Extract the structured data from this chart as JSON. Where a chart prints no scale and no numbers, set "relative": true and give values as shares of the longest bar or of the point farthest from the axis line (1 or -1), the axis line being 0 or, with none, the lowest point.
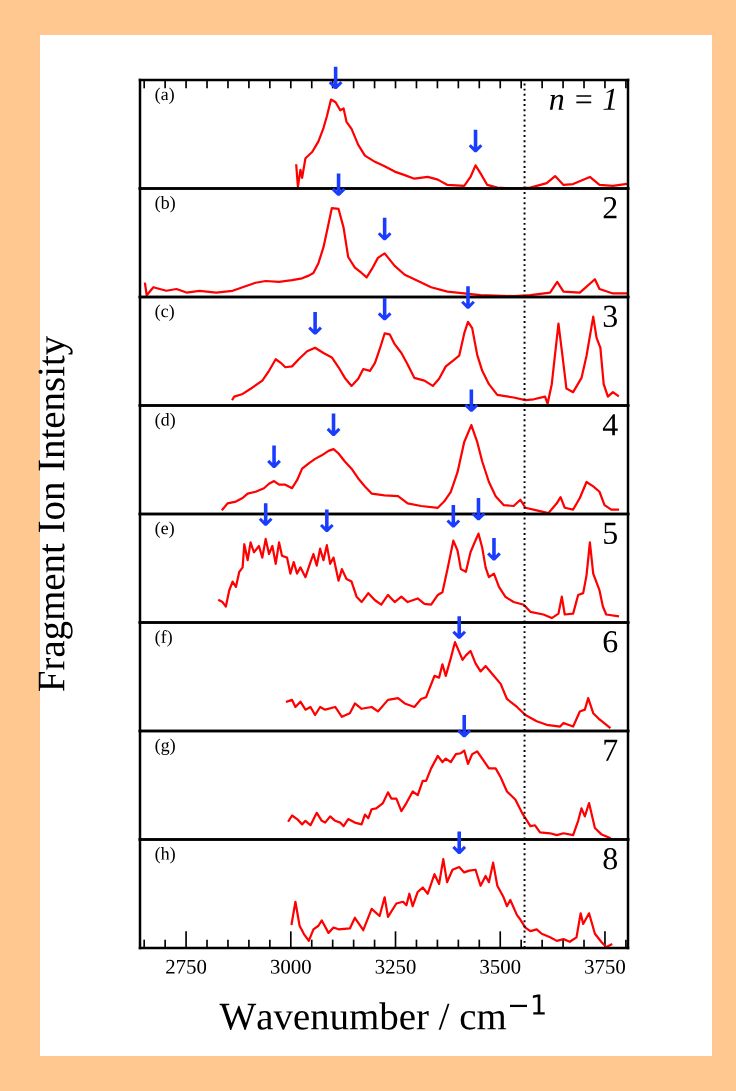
{
  "chart_data": [
    {
      "type": "line",
      "relative": true,
      "ylabel": "Fragment Ion Intensity",
      "xlim": [
        2640,
        3805
      ],
      "tick_labels": false,
      "legend": false,
      "grid": false,
      "xticks": [
        {
          "value": 2650,
          "label": null
        },
        {
          "value": 2700,
          "label": null
        },
        {
          "value": 2750,
          "label": null
        },
        {
          "value": 2800,
          "label": null
        },
        {
          "value": 2850,
          "label": null
        },
        {
          "value": 2900,
          "label": null
        },
        {
          "value": 2950,
          "label": null
        },
        {
          "value": 3000,
          "label": null
        },
        {
          "value": 3050,
          "label": null
        },
        {
          "value": 3100,
          "label": null
        },
        {
          "value": 3150,
          "label": null
        },
        {
          "value": 3200,
          "label": null
        },
        {
          "value": 3250,
          "label": null
        },
        {
          "value": 3300,
          "label": null
        },
        {
          "value": 3350,
          "label": null
        },
        {
          "value": 3400,
          "label": null
        },
        {
          "value": 3450,
          "label": null
        },
        {
          "value": 3500,
          "label": null
        },
        {
          "value": 3550,
          "label": null
        },
        {
          "value": 3600,
          "label": null
        },
        {
          "value": 3650,
          "label": null
        },
        {
          "value": 3700,
          "label": null
        },
        {
          "value": 3750,
          "label": null
        },
        {
          "value": 3800,
          "label": null
        }
      ],
      "ref_lines": [
        {
          "axis": "x",
          "value": 3558,
          "color": "#000000",
          "line_style": "dotted"
        }
      ],
      "annotations": [
        "(a)",
        "n = 1",
        {
          "text": "↓",
          "x": 3107,
          "y": 0.97
        },
        {
          "text": "↓",
          "x": 3441,
          "y": 0.26
        }
      ],
      "series": [
        {
          "color": "#ff0000",
          "x": [
            3013,
            3017,
            3023,
            3027,
            3035,
            3051,
            3066,
            3078,
            3086,
            3096,
            3107,
            3118,
            3126,
            3133,
            3145,
            3161,
            3177,
            3201,
            3224,
            3248,
            3272,
            3295,
            3327,
            3351,
            3374,
            3414,
            3429,
            3441,
            3453,
            3469,
            3493,
            3532,
            3572,
            3611,
            3631,
            3651,
            3674,
            3714,
            3737,
            3769,
            3800
          ],
          "values": [
            0.26,
            0.02,
            0.21,
            0.12,
            0.34,
            0.41,
            0.53,
            0.68,
            0.81,
            1.0,
            0.97,
            0.88,
            0.9,
            0.75,
            0.67,
            0.49,
            0.37,
            0.3,
            0.25,
            0.19,
            0.15,
            0.11,
            0.13,
            0.1,
            0.04,
            0.03,
            0.13,
            0.26,
            0.17,
            0.04,
            0.01,
            0.0,
            0.01,
            0.06,
            0.14,
            0.04,
            0.05,
            0.13,
            0.04,
            0.03,
            0.05
          ]
        }
      ]
    },
    {
      "type": "line",
      "relative": true,
      "xlim": [
        2640,
        3805
      ],
      "tick_labels": false,
      "legend": false,
      "grid": false,
      "ref_lines": [
        {
          "axis": "x",
          "value": 3558,
          "color": "#000000",
          "line_style": "dotted"
        }
      ],
      "annotations": [
        "(b)",
        "2",
        {
          "text": "↓",
          "x": 3114,
          "y": 0.99
        },
        {
          "text": "↓",
          "x": 3224,
          "y": 0.49
        }
      ],
      "series": [
        {
          "color": "#ff0000",
          "x": [
            2652,
            2656,
            2672,
            2687,
            2703,
            2727,
            2751,
            2782,
            2822,
            2861,
            2885,
            2916,
            2940,
            2972,
            3003,
            3027,
            3043,
            3054,
            3066,
            3078,
            3090,
            3098,
            3114,
            3126,
            3137,
            3153,
            3169,
            3181,
            3193,
            3208,
            3224,
            3236,
            3248,
            3272,
            3295,
            3335,
            3374,
            3414,
            3453,
            3532,
            3572,
            3619,
            3636,
            3651,
            3690,
            3726,
            3737,
            3769,
            3800
          ],
          "values": [
            0.15,
            0.02,
            0.11,
            0.09,
            0.07,
            0.09,
            0.05,
            0.07,
            0.05,
            0.07,
            0.11,
            0.16,
            0.18,
            0.17,
            0.19,
            0.21,
            0.24,
            0.27,
            0.38,
            0.56,
            0.82,
            1.0,
            0.99,
            0.78,
            0.45,
            0.33,
            0.27,
            0.22,
            0.31,
            0.44,
            0.49,
            0.42,
            0.35,
            0.25,
            0.2,
            0.11,
            0.06,
            0.04,
            0.02,
            0.01,
            0.02,
            0.05,
            0.17,
            0.06,
            0.05,
            0.2,
            0.09,
            0.04,
            0.04
          ]
        }
      ]
    },
    {
      "type": "line",
      "relative": true,
      "xlim": [
        2640,
        3805
      ],
      "tick_labels": false,
      "legend": false,
      "grid": false,
      "ref_lines": [
        {
          "axis": "x",
          "value": 3558,
          "color": "#000000",
          "line_style": "dotted"
        }
      ],
      "annotations": [
        "(c)",
        "3",
        {
          "text": "↓",
          "x": 3058,
          "y": 0.65
        },
        {
          "text": "↓",
          "x": 3224,
          "y": 0.81
        },
        {
          "text": "↓",
          "x": 3423,
          "y": 0.94
        }
      ],
      "series": [
        {
          "color": "#ff0000",
          "x": [
            2861,
            2865,
            2885,
            2908,
            2932,
            2948,
            2964,
            2976,
            2987,
            3003,
            3019,
            3039,
            3058,
            3078,
            3098,
            3114,
            3129,
            3145,
            3161,
            3173,
            3189,
            3201,
            3212,
            3224,
            3236,
            3248,
            3264,
            3279,
            3295,
            3319,
            3339,
            3354,
            3370,
            3386,
            3402,
            3414,
            3423,
            3433,
            3445,
            3457,
            3473,
            3493,
            3532,
            3560,
            3580,
            3607,
            3613,
            3623,
            3639,
            3649,
            3658,
            3674,
            3694,
            3706,
            3722,
            3730,
            3739,
            3747,
            3757,
            3769,
            3781
          ],
          "values": [
            0.07,
            0.1,
            0.13,
            0.2,
            0.28,
            0.39,
            0.52,
            0.48,
            0.43,
            0.44,
            0.52,
            0.61,
            0.65,
            0.59,
            0.54,
            0.43,
            0.31,
            0.22,
            0.3,
            0.41,
            0.39,
            0.48,
            0.63,
            0.81,
            0.8,
            0.69,
            0.59,
            0.46,
            0.31,
            0.28,
            0.22,
            0.3,
            0.44,
            0.5,
            0.56,
            0.81,
            0.94,
            0.87,
            0.57,
            0.39,
            0.24,
            0.12,
            0.09,
            0.06,
            0.07,
            0.1,
            0.02,
            0.24,
            0.92,
            0.54,
            0.19,
            0.15,
            0.31,
            0.56,
            1.0,
            0.76,
            0.65,
            0.24,
            0.1,
            0.15,
            0.11
          ]
        }
      ]
    },
    {
      "type": "line",
      "relative": true,
      "xlim": [
        2640,
        3805
      ],
      "tick_labels": false,
      "legend": false,
      "grid": false,
      "ref_lines": [
        {
          "axis": "x",
          "value": 3558,
          "color": "#000000",
          "line_style": "dotted"
        }
      ],
      "annotations": [
        "(d)",
        "4",
        {
          "text": "↓",
          "x": 2960,
          "y": 0.37
        },
        {
          "text": "↓",
          "x": 3102,
          "y": 0.73
        },
        {
          "text": "↓",
          "x": 3431,
          "y": 1.0
        }
      ],
      "series": [
        {
          "color": "#ff0000",
          "x": [
            2837,
            2849,
            2869,
            2885,
            2897,
            2916,
            2936,
            2948,
            2960,
            2972,
            2987,
            3003,
            3015,
            3027,
            3043,
            3058,
            3074,
            3090,
            3102,
            3114,
            3129,
            3145,
            3161,
            3177,
            3193,
            3224,
            3256,
            3279,
            3311,
            3351,
            3366,
            3382,
            3398,
            3414,
            3431,
            3445,
            3457,
            3473,
            3489,
            3508,
            3532,
            3548,
            3560,
            3587,
            3615,
            3635,
            3644,
            3654,
            3674,
            3690,
            3706,
            3722,
            3737,
            3749,
            3765,
            3781
          ],
          "values": [
            0.05,
            0.12,
            0.14,
            0.18,
            0.23,
            0.25,
            0.29,
            0.34,
            0.37,
            0.33,
            0.33,
            0.29,
            0.38,
            0.51,
            0.57,
            0.62,
            0.66,
            0.71,
            0.73,
            0.68,
            0.59,
            0.51,
            0.4,
            0.31,
            0.23,
            0.21,
            0.2,
            0.12,
            0.09,
            0.07,
            0.14,
            0.25,
            0.47,
            0.81,
            1.0,
            0.81,
            0.59,
            0.36,
            0.2,
            0.1,
            0.09,
            0.16,
            0.07,
            0.04,
            0.01,
            0.12,
            0.19,
            0.07,
            0.05,
            0.18,
            0.36,
            0.31,
            0.25,
            0.1,
            0.05,
            0.05
          ]
        }
      ]
    },
    {
      "type": "line",
      "relative": true,
      "xlim": [
        2640,
        3805
      ],
      "tick_labels": false,
      "legend": false,
      "grid": false,
      "ref_lines": [
        {
          "axis": "x",
          "value": 3558,
          "color": "#000000",
          "line_style": "dotted"
        }
      ],
      "annotations": [
        "(e)",
        "5",
        {
          "text": "↓",
          "x": 2940,
          "y": 0.94
        },
        {
          "text": "↓",
          "x": 3086,
          "y": 0.87
        },
        {
          "text": "↓",
          "x": 3388,
          "y": 0.92
        },
        {
          "text": "↓",
          "x": 3448,
          "y": 1.0
        },
        {
          "text": "↓",
          "x": 3485,
          "y": 0.55
        }
      ],
      "series": [
        {
          "color": "#ff0000",
          "x": [
            2829,
            2837,
            2845,
            2853,
            2861,
            2869,
            2877,
            2885,
            2889,
            2897,
            2904,
            2912,
            2924,
            2932,
            2940,
            2948,
            2956,
            2964,
            2972,
            2979,
            2991,
            2999,
            3007,
            3015,
            3023,
            3035,
            3047,
            3054,
            3062,
            3070,
            3078,
            3086,
            3094,
            3102,
            3114,
            3122,
            3133,
            3145,
            3157,
            3169,
            3185,
            3201,
            3216,
            3232,
            3248,
            3264,
            3279,
            3303,
            3319,
            3335,
            3351,
            3362,
            3374,
            3388,
            3398,
            3406,
            3418,
            3429,
            3437,
            3448,
            3457,
            3465,
            3473,
            3485,
            3497,
            3512,
            3532,
            3556,
            3572,
            3603,
            3623,
            3639,
            3647,
            3654,
            3674,
            3686,
            3698,
            3706,
            3714,
            3722,
            3737,
            3745,
            3753,
            3781
          ],
          "values": [
            0.25,
            0.23,
            0.18,
            0.36,
            0.46,
            0.4,
            0.57,
            0.62,
            0.88,
            0.7,
            0.9,
            0.79,
            0.86,
            0.73,
            0.94,
            0.77,
            0.86,
            0.66,
            0.9,
            0.75,
            0.73,
            0.55,
            0.68,
            0.55,
            0.62,
            0.51,
            0.68,
            0.77,
            0.64,
            0.83,
            0.7,
            0.87,
            0.66,
            0.73,
            0.47,
            0.6,
            0.49,
            0.46,
            0.29,
            0.23,
            0.33,
            0.25,
            0.2,
            0.31,
            0.23,
            0.29,
            0.23,
            0.27,
            0.21,
            0.2,
            0.31,
            0.34,
            0.6,
            0.92,
            0.81,
            0.6,
            0.57,
            0.79,
            0.88,
            1.0,
            0.84,
            0.62,
            0.51,
            0.55,
            0.4,
            0.29,
            0.23,
            0.2,
            0.12,
            0.09,
            0.05,
            0.1,
            0.29,
            0.09,
            0.1,
            0.31,
            0.33,
            0.53,
            0.9,
            0.55,
            0.36,
            0.18,
            0.09,
            0.07
          ]
        }
      ]
    },
    {
      "type": "line",
      "relative": true,
      "xlim": [
        2640,
        3805
      ],
      "tick_labels": false,
      "legend": false,
      "grid": false,
      "ref_lines": [
        {
          "axis": "x",
          "value": 3558,
          "color": "#000000",
          "line_style": "dotted"
        }
      ],
      "annotations": [
        "(f)",
        "6",
        {
          "text": "↓",
          "x": 3402,
          "y": 0.89
        }
      ],
      "series": [
        {
          "color": "#ff0000",
          "x": [
            2991,
            3003,
            3011,
            3023,
            3035,
            3047,
            3058,
            3070,
            3082,
            3106,
            3122,
            3141,
            3153,
            3169,
            3193,
            3208,
            3232,
            3256,
            3272,
            3295,
            3311,
            3323,
            3343,
            3354,
            3362,
            3370,
            3382,
            3392,
            3402,
            3410,
            3418,
            3429,
            3441,
            3453,
            3465,
            3481,
            3501,
            3516,
            3540,
            3560,
            3587,
            3611,
            3643,
            3651,
            3674,
            3690,
            3702,
            3710,
            3722,
            3737,
            3761
          ],
          "values": [
            0.33,
            0.35,
            0.27,
            0.33,
            0.24,
            0.27,
            0.18,
            0.27,
            0.24,
            0.27,
            0.16,
            0.2,
            0.31,
            0.25,
            0.27,
            0.22,
            0.35,
            0.37,
            0.31,
            0.27,
            0.36,
            0.38,
            0.62,
            0.6,
            0.75,
            0.62,
            0.82,
            1.0,
            0.89,
            0.8,
            0.85,
            0.9,
            0.76,
            0.67,
            0.73,
            0.64,
            0.53,
            0.36,
            0.27,
            0.18,
            0.11,
            0.07,
            0.05,
            0.09,
            0.05,
            0.22,
            0.24,
            0.37,
            0.2,
            0.13,
            0.04
          ]
        }
      ]
    },
    {
      "type": "line",
      "relative": true,
      "xlim": [
        2640,
        3805
      ],
      "tick_labels": false,
      "legend": false,
      "grid": false,
      "ref_lines": [
        {
          "axis": "x",
          "value": 3558,
          "color": "#000000",
          "line_style": "dotted"
        }
      ],
      "annotations": [
        "(g)",
        "7",
        {
          "text": "↓",
          "x": 3414,
          "y": 1.0
        }
      ],
      "series": [
        {
          "color": "#ff0000",
          "x": [
            2995,
            3003,
            3015,
            3027,
            3035,
            3047,
            3062,
            3074,
            3082,
            3094,
            3106,
            3118,
            3126,
            3137,
            3153,
            3169,
            3177,
            3185,
            3193,
            3204,
            3220,
            3232,
            3240,
            3252,
            3264,
            3276,
            3291,
            3303,
            3315,
            3323,
            3335,
            3351,
            3362,
            3370,
            3382,
            3394,
            3406,
            3414,
            3423,
            3433,
            3445,
            3457,
            3473,
            3489,
            3501,
            3516,
            3536,
            3552,
            3560,
            3572,
            3583,
            3595,
            3619,
            3635,
            3651,
            3674,
            3686,
            3694,
            3702,
            3712,
            3726,
            3741,
            3761
          ],
          "values": [
            0.21,
            0.27,
            0.23,
            0.17,
            0.21,
            0.16,
            0.3,
            0.21,
            0.19,
            0.26,
            0.21,
            0.19,
            0.15,
            0.23,
            0.19,
            0.17,
            0.28,
            0.24,
            0.34,
            0.35,
            0.41,
            0.53,
            0.46,
            0.46,
            0.32,
            0.41,
            0.54,
            0.5,
            0.66,
            0.66,
            0.8,
            0.94,
            0.87,
            0.91,
            0.87,
            0.96,
            0.97,
            1.0,
            0.85,
            0.96,
            0.99,
            0.91,
            0.8,
            0.8,
            0.7,
            0.54,
            0.45,
            0.3,
            0.24,
            0.15,
            0.16,
            0.08,
            0.07,
            0.05,
            0.07,
            0.05,
            0.21,
            0.35,
            0.26,
            0.41,
            0.13,
            0.06,
            0.02
          ]
        }
      ]
    },
    {
      "type": "line",
      "relative": true,
      "xlim": [
        2640,
        3805
      ],
      "tick_labels": "x",
      "legend": false,
      "grid": false,
      "xlabel": "Wavenumber / cm$^{−1}$",
      "xticks": [
        {
          "value": 2650,
          "label": null
        },
        {
          "value": 2700,
          "label": null
        },
        {
          "value": 2750,
          "label": "2750"
        },
        {
          "value": 2800,
          "label": null
        },
        {
          "value": 2850,
          "label": null
        },
        {
          "value": 2900,
          "label": null
        },
        {
          "value": 2950,
          "label": null
        },
        {
          "value": 3000,
          "label": "3000"
        },
        {
          "value": 3050,
          "label": null
        },
        {
          "value": 3100,
          "label": null
        },
        {
          "value": 3150,
          "label": null
        },
        {
          "value": 3200,
          "label": null
        },
        {
          "value": 3250,
          "label": "3250"
        },
        {
          "value": 3300,
          "label": null
        },
        {
          "value": 3350,
          "label": null
        },
        {
          "value": 3400,
          "label": null
        },
        {
          "value": 3450,
          "label": null
        },
        {
          "value": 3500,
          "label": "3500"
        },
        {
          "value": 3550,
          "label": null
        },
        {
          "value": 3600,
          "label": null
        },
        {
          "value": 3650,
          "label": null
        },
        {
          "value": 3700,
          "label": null
        },
        {
          "value": 3750,
          "label": "3750"
        },
        {
          "value": 3800,
          "label": null
        }
      ],
      "ref_lines": [
        {
          "axis": "x",
          "value": 3558,
          "color": "#000000",
          "line_style": "dotted"
        }
      ],
      "annotations": [
        "(h)",
        "8",
        {
          "text": "↓",
          "x": 3402,
          "y": 0.91
        }
      ],
      "series": [
        {
          "color": "#ff0000",
          "x": [
            3002,
            3011,
            3021,
            3031,
            3043,
            3054,
            3066,
            3074,
            3090,
            3102,
            3114,
            3141,
            3153,
            3173,
            3193,
            3212,
            3224,
            3232,
            3252,
            3268,
            3276,
            3283,
            3291,
            3303,
            3315,
            3327,
            3343,
            3354,
            3364,
            3373,
            3386,
            3402,
            3414,
            3426,
            3441,
            3453,
            3465,
            3473,
            3483,
            3493,
            3508,
            3516,
            3524,
            3540,
            3548,
            3560,
            3572,
            3587,
            3599,
            3619,
            3635,
            3651,
            3666,
            3682,
            3692,
            3698,
            3712,
            3726,
            3741,
            3753,
            3765
          ],
          "values": [
            0.27,
            0.52,
            0.25,
            0.16,
            0.08,
            0.21,
            0.25,
            0.31,
            0.17,
            0.23,
            0.21,
            0.22,
            0.34,
            0.2,
            0.44,
            0.36,
            0.57,
            0.35,
            0.5,
            0.52,
            0.48,
            0.61,
            0.47,
            0.63,
            0.68,
            0.61,
            0.83,
            0.72,
            1.0,
            0.74,
            0.88,
            0.91,
            0.85,
            0.87,
            0.88,
            0.7,
            0.81,
            0.74,
            0.96,
            0.7,
            0.57,
            0.47,
            0.54,
            0.37,
            0.32,
            0.23,
            0.19,
            0.21,
            0.16,
            0.12,
            0.08,
            0.1,
            0.07,
            0.12,
            0.39,
            0.27,
            0.39,
            0.16,
            0.07,
            0.01,
            0.04
          ]
        }
      ]
    }
  ]
}
